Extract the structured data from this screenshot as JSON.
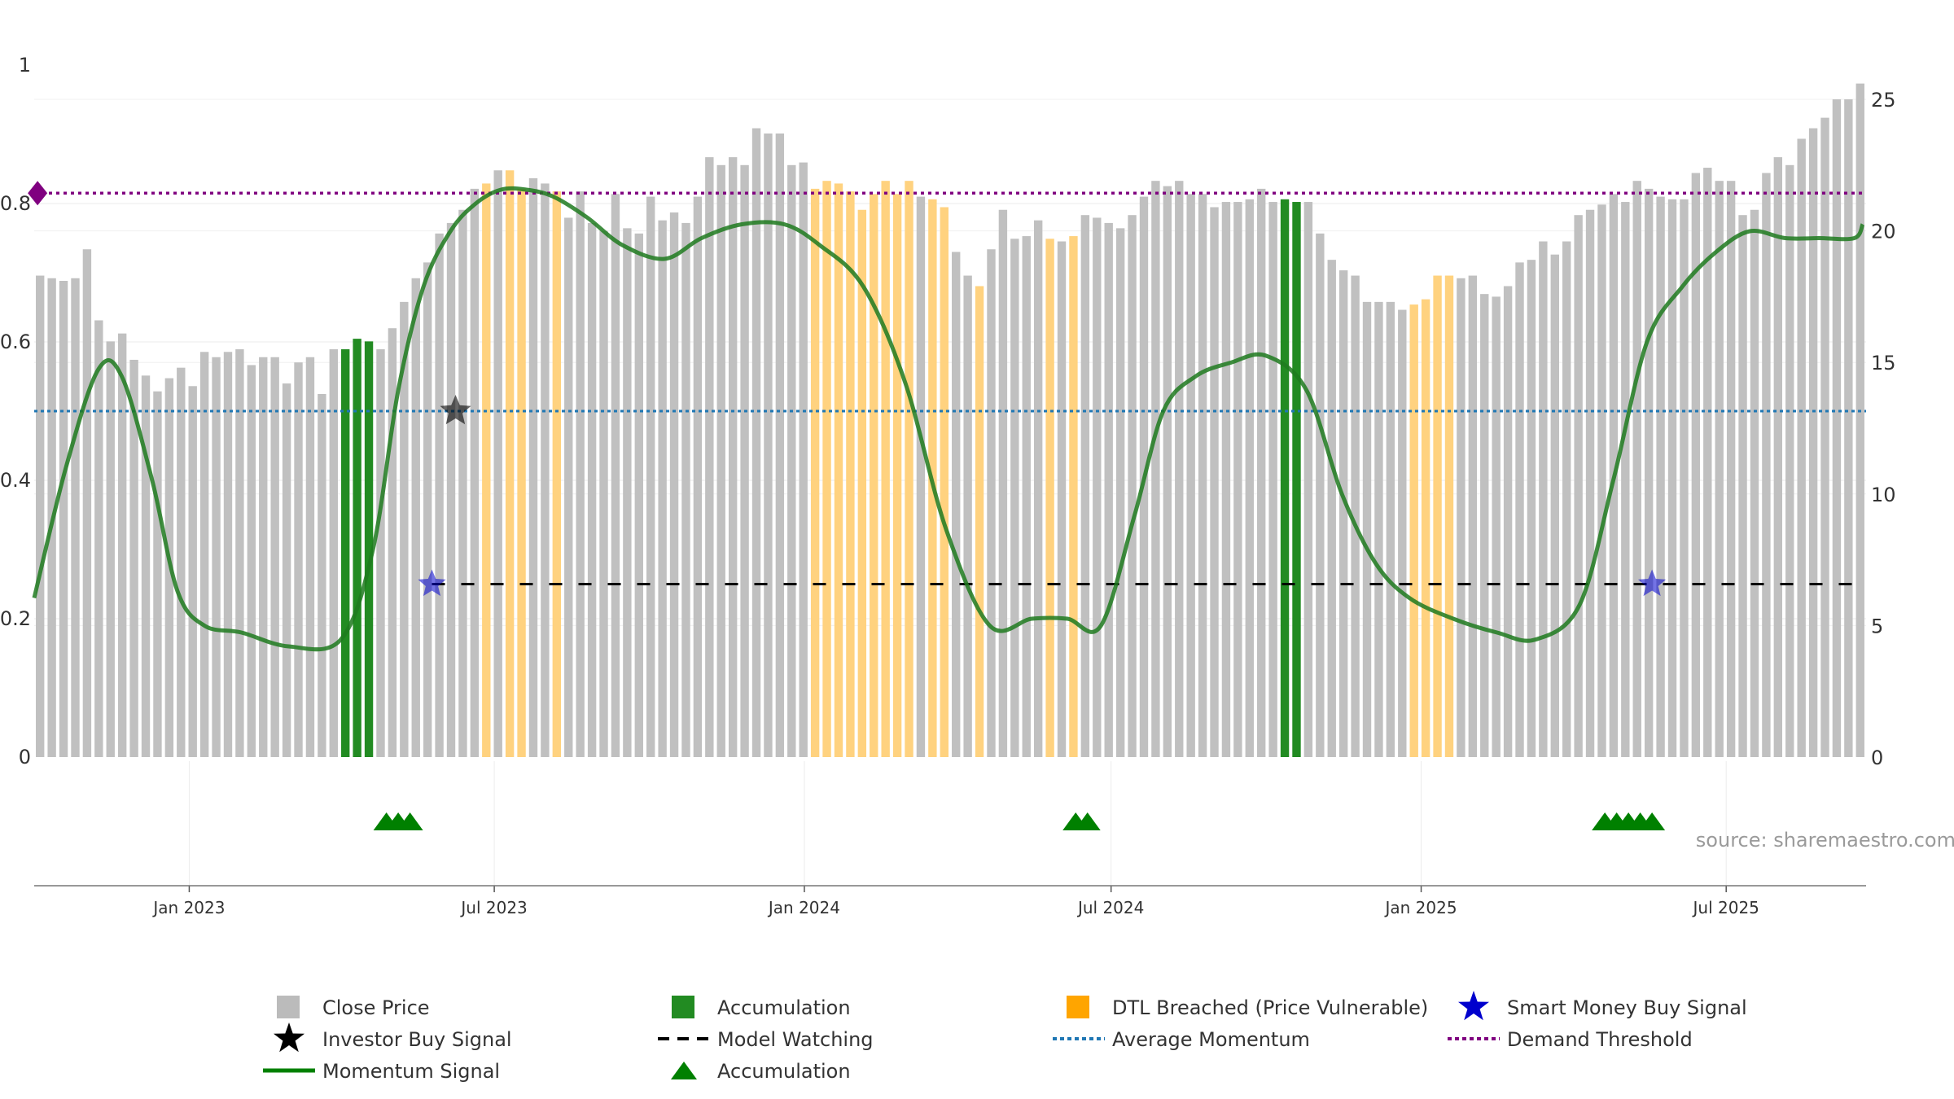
{
  "chart_data": {
    "type": "bar",
    "source_note": "source: sharemaestro.com",
    "left_axis": {
      "ticks": [
        0,
        0.2,
        0.4,
        0.6,
        0.8,
        1
      ],
      "tick_labels": [
        "0",
        "0.2",
        "0.4",
        "0.6",
        "0.8",
        "1"
      ],
      "ylim": [
        0,
        1.0
      ]
    },
    "right_axis": {
      "ticks": [
        0,
        5,
        10,
        15,
        20,
        25
      ],
      "tick_labels": [
        "0",
        "5",
        "10",
        "15",
        "20",
        "25"
      ],
      "ylim": [
        0,
        25.6
      ]
    },
    "x_axis": {
      "start": "2022-10-01",
      "end": "2025-09-22",
      "ticks": [
        {
          "date": "2023-01-01",
          "label": "Jan 2023"
        },
        {
          "date": "2023-07-01",
          "label": "Jul 2023"
        },
        {
          "date": "2024-01-01",
          "label": "Jan 2024"
        },
        {
          "date": "2024-07-01",
          "label": "Jul 2024"
        },
        {
          "date": "2025-01-01",
          "label": "Jan 2025"
        },
        {
          "date": "2025-07-01",
          "label": "Jul 2025"
        }
      ]
    },
    "colors": {
      "close_price": "#c0c0c0",
      "accumulation": "#228b22",
      "dtl_breached": "#ffd27f",
      "momentum": "#228b22",
      "average_momentum": "#1f77b4",
      "demand_threshold": "#800080",
      "model_watching": "#000000",
      "smart_money": "#0000cd",
      "investor_signal": "#000000"
    },
    "series": [
      {
        "name": "Close Price",
        "axis": "right",
        "type": "bar",
        "values": [
          18.3,
          18.2,
          18.1,
          18.2,
          19.3,
          16.6,
          15.8,
          16.1,
          15.1,
          14.5,
          13.9,
          14.4,
          14.8,
          14.1,
          15.4,
          15.2,
          15.4,
          15.5,
          14.9,
          15.2,
          15.2,
          14.2,
          15.0,
          15.2,
          13.8,
          15.5,
          15.5,
          15.9,
          15.8,
          15.5,
          16.3,
          17.3,
          18.2,
          18.8,
          19.9,
          20.3,
          20.8,
          21.6,
          21.8,
          22.3,
          22.3,
          21.6,
          22.0,
          21.8,
          21.5,
          20.5,
          21.5,
          20.3,
          20.0,
          21.4,
          20.1,
          19.9,
          21.3,
          20.4,
          20.7,
          20.3,
          21.3,
          22.8,
          22.5,
          22.8,
          22.5,
          23.9,
          23.7,
          23.7,
          22.5,
          22.6,
          21.6,
          21.9,
          21.8,
          21.5,
          20.8,
          21.4,
          21.9,
          21.4,
          21.9,
          21.3,
          21.2,
          20.9,
          19.2,
          18.3,
          17.9,
          19.3,
          20.8,
          19.7,
          19.8,
          20.4,
          19.7,
          19.6,
          19.8,
          20.6,
          20.5,
          20.3,
          20.1,
          20.6,
          21.3,
          21.9,
          21.7,
          21.9,
          21.4,
          21.4,
          20.9,
          21.1,
          21.1,
          21.2,
          21.6,
          21.1,
          21.2,
          21.1,
          21.1,
          19.9,
          18.9,
          18.5,
          18.3,
          17.3,
          17.3,
          17.3,
          17.0,
          17.2,
          17.4,
          18.3,
          18.3,
          18.2,
          18.3,
          17.6,
          17.5,
          17.9,
          18.8,
          18.9,
          19.6,
          19.1,
          19.6,
          20.6,
          20.8,
          21.0,
          21.4,
          21.1,
          21.9,
          21.6,
          21.3,
          21.2,
          21.2,
          22.2,
          22.4,
          21.9,
          21.9,
          20.6,
          20.8,
          22.2,
          22.8,
          22.5,
          23.5,
          23.9,
          24.3,
          25.0,
          25.0,
          25.6
        ],
        "categories_flags": "0=close,1=accumulation,2=dtl (see flags)",
        "flags": [
          0,
          0,
          0,
          0,
          0,
          0,
          0,
          0,
          0,
          0,
          0,
          0,
          0,
          0,
          0,
          0,
          0,
          0,
          0,
          0,
          0,
          0,
          0,
          0,
          0,
          0,
          1,
          1,
          1,
          0,
          0,
          0,
          0,
          0,
          0,
          0,
          0,
          0,
          2,
          0,
          2,
          2,
          0,
          0,
          2,
          0,
          0,
          0,
          0,
          0,
          0,
          0,
          0,
          0,
          0,
          0,
          0,
          0,
          0,
          0,
          0,
          0,
          0,
          0,
          0,
          0,
          2,
          2,
          2,
          2,
          2,
          2,
          2,
          2,
          2,
          0,
          2,
          2,
          0,
          0,
          2,
          0,
          0,
          0,
          0,
          0,
          2,
          0,
          2,
          0,
          0,
          0,
          0,
          0,
          0,
          0,
          0,
          0,
          0,
          0,
          0,
          0,
          0,
          0,
          0,
          0,
          1,
          1,
          0,
          0,
          0,
          0,
          0,
          0,
          0,
          0,
          0,
          2,
          2,
          2,
          2,
          0,
          0,
          0,
          0,
          0,
          0,
          0,
          0,
          0,
          0,
          0,
          0,
          0,
          0,
          0,
          0,
          0,
          0,
          0,
          0,
          0,
          0,
          0,
          0,
          0,
          0,
          0,
          0,
          0,
          0,
          0,
          0,
          0,
          0,
          0,
          0,
          0,
          0,
          0,
          0,
          0,
          0,
          0,
          0,
          0,
          0,
          0
        ]
      },
      {
        "name": "Momentum Signal",
        "axis": "left",
        "type": "line",
        "x_dates": [
          "2022-10-01",
          "2022-10-20",
          "2022-11-08",
          "2022-11-22",
          "2022-12-10",
          "2022-12-25",
          "2023-01-10",
          "2023-02-01",
          "2023-03-01",
          "2023-04-01",
          "2023-04-20",
          "2023-05-05",
          "2023-05-20",
          "2023-06-05",
          "2023-06-20",
          "2023-07-05",
          "2023-07-20",
          "2023-08-05",
          "2023-08-25",
          "2023-09-15",
          "2023-10-10",
          "2023-11-01",
          "2023-11-25",
          "2023-12-20",
          "2024-01-10",
          "2024-02-05",
          "2024-03-01",
          "2024-03-25",
          "2024-04-20",
          "2024-05-15",
          "2024-06-05",
          "2024-06-25",
          "2024-07-15",
          "2024-08-01",
          "2024-08-20",
          "2024-09-10",
          "2024-10-01",
          "2024-10-25",
          "2024-11-15",
          "2024-12-05",
          "2024-12-25",
          "2025-01-20",
          "2025-02-15",
          "2025-03-10",
          "2025-04-05",
          "2025-04-25",
          "2025-05-15",
          "2025-06-05",
          "2025-06-25",
          "2025-07-15",
          "2025-08-05",
          "2025-08-25",
          "2025-09-15",
          "2025-09-20"
        ],
        "values": [
          0.23,
          0.42,
          0.56,
          0.55,
          0.4,
          0.24,
          0.19,
          0.18,
          0.16,
          0.17,
          0.3,
          0.53,
          0.68,
          0.76,
          0.8,
          0.82,
          0.82,
          0.81,
          0.78,
          0.74,
          0.72,
          0.75,
          0.77,
          0.77,
          0.74,
          0.68,
          0.54,
          0.33,
          0.19,
          0.2,
          0.2,
          0.19,
          0.35,
          0.5,
          0.55,
          0.57,
          0.58,
          0.53,
          0.38,
          0.28,
          0.23,
          0.2,
          0.18,
          0.17,
          0.22,
          0.4,
          0.6,
          0.68,
          0.73,
          0.76,
          0.75,
          0.75,
          0.75,
          0.77
        ]
      },
      {
        "name": "Average Momentum",
        "axis": "left",
        "type": "hline",
        "value": 0.5
      },
      {
        "name": "Demand Threshold",
        "axis": "left",
        "type": "hline",
        "value": 0.815
      },
      {
        "name": "Model Watching",
        "axis": "left",
        "type": "hline",
        "value": 0.25,
        "x_start": "2023-05-25",
        "x_end": "2025-09-20"
      },
      {
        "name": "Smart Money Buy Signal",
        "axis": "left",
        "type": "marker",
        "points": [
          {
            "date": "2023-05-25",
            "value": 0.25
          },
          {
            "date": "2025-05-18",
            "value": 0.25
          }
        ]
      },
      {
        "name": "Investor Buy Signal",
        "axis": "left",
        "type": "marker",
        "points": [
          {
            "date": "2023-06-08",
            "value": 0.5
          }
        ]
      },
      {
        "name": "Accumulation",
        "type": "triangle-marker",
        "dates": [
          "2023-04-28",
          "2023-05-05",
          "2023-05-12",
          "2024-06-10",
          "2024-06-17",
          "2025-04-20",
          "2025-04-27",
          "2025-05-04",
          "2025-05-11",
          "2025-05-18"
        ]
      },
      {
        "name": "Demand Threshold marker",
        "axis": "left",
        "type": "diamond",
        "points": [
          {
            "date": "2022-10-03",
            "value": 0.815
          }
        ]
      }
    ],
    "legend": {
      "placement": "bottom",
      "items": [
        {
          "label": "Close Price",
          "symbol": "square",
          "color": "#bbbbbb"
        },
        {
          "label": "Accumulation",
          "symbol": "square",
          "color": "#228b22"
        },
        {
          "label": "DTL Breached (Price Vulnerable)",
          "symbol": "square",
          "color": "#ffa500"
        },
        {
          "label": "Smart Money Buy Signal",
          "symbol": "star",
          "color": "#0000cd"
        },
        {
          "label": "Investor Buy Signal",
          "symbol": "star",
          "color": "#000000"
        },
        {
          "label": "Model Watching",
          "symbol": "dash",
          "color": "#000000"
        },
        {
          "label": "Average Momentum",
          "symbol": "dot",
          "color": "#1f77b4"
        },
        {
          "label": "Demand Threshold",
          "symbol": "dot",
          "color": "#800080"
        },
        {
          "label": "Momentum Signal",
          "symbol": "line",
          "color": "#008000"
        },
        {
          "label": "Accumulation",
          "symbol": "triangle",
          "color": "#008000"
        }
      ]
    }
  }
}
